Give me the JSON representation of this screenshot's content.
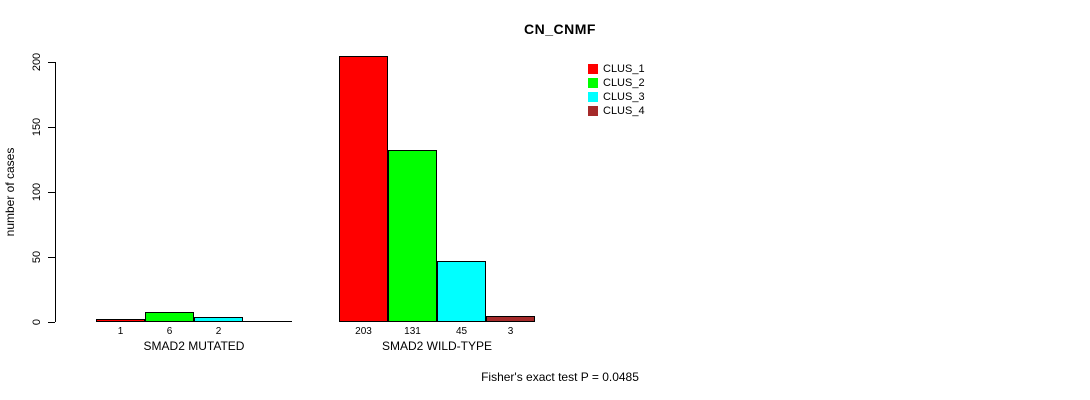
{
  "chart_data": {
    "type": "bar",
    "title": "CN_CNMF",
    "ylabel": "number of cases",
    "xlabel": "",
    "ylim": [
      0,
      200
    ],
    "yticks": [
      0,
      50,
      100,
      150,
      200
    ],
    "grid": false,
    "legend_position": "top-right",
    "categories": [
      "SMAD2 MUTATED",
      "SMAD2 WILD-TYPE"
    ],
    "series": [
      {
        "name": "CLUS_1",
        "color": "#FF0000",
        "values": [
          1,
          203
        ]
      },
      {
        "name": "CLUS_2",
        "color": "#00FF00",
        "values": [
          6,
          131
        ]
      },
      {
        "name": "CLUS_3",
        "color": "#00FFFF",
        "values": [
          2,
          45
        ]
      },
      {
        "name": "CLUS_4",
        "color": "#A52A2A",
        "values": [
          0,
          3
        ]
      }
    ],
    "bar_value_labels": [
      [
        "1",
        "6",
        "2",
        ""
      ],
      [
        "203",
        "131",
        "45",
        "3"
      ]
    ],
    "annotation": "Fisher's exact test P = 0.0485",
    "text_color": "#000000",
    "axis_color": "#000000",
    "background_color": "#FFFFFF"
  }
}
